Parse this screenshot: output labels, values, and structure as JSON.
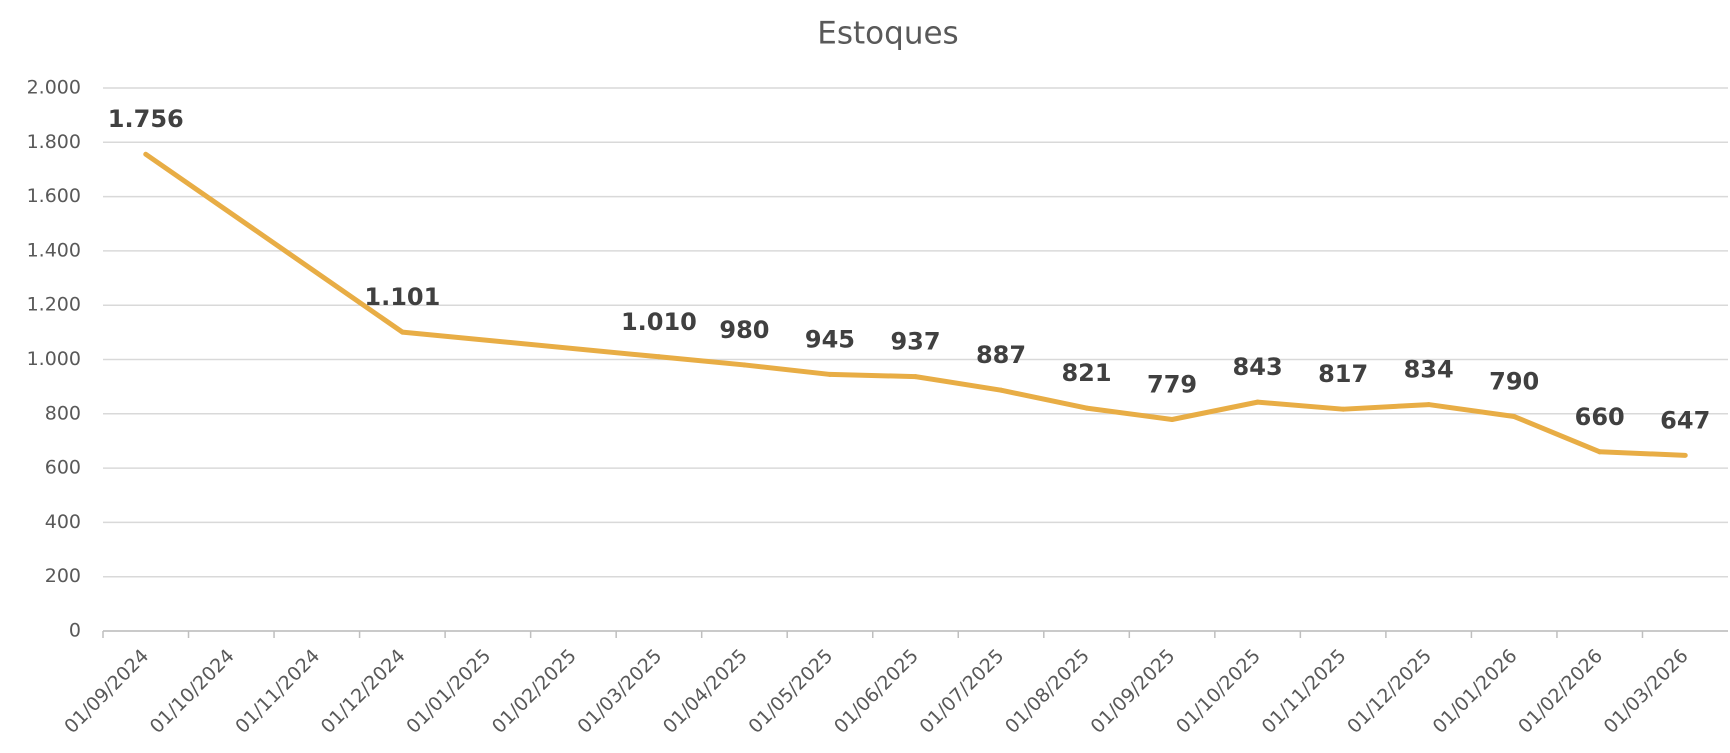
{
  "chart_data": {
    "type": "line",
    "title": "Estoques",
    "categories": [
      "01/09/2024",
      "01/10/2024",
      "01/11/2024",
      "01/12/2024",
      "01/01/2025",
      "01/02/2025",
      "01/03/2025",
      "01/04/2025",
      "01/05/2025",
      "01/06/2025",
      "01/07/2025",
      "01/08/2025",
      "01/09/2025",
      "01/10/2025",
      "01/11/2025",
      "01/12/2025",
      "01/01/2026",
      "01/02/2026",
      "01/03/2026"
    ],
    "values": [
      1756,
      null,
      null,
      1101,
      null,
      null,
      1010,
      980,
      945,
      937,
      887,
      821,
      779,
      843,
      817,
      834,
      790,
      660,
      647
    ],
    "value_labels": [
      "1.756",
      null,
      null,
      "1.101",
      null,
      null,
      "1.010",
      "980",
      "945",
      "937",
      "887",
      "821",
      "779",
      "843",
      "817",
      "834",
      "790",
      "660",
      "647"
    ],
    "connect_gaps": true,
    "color": "#e8ad45",
    "ylim": [
      0,
      2000
    ],
    "yticks": [
      0,
      200,
      400,
      600,
      800,
      {
        "value": 1000,
        "label": "1.000"
      },
      {
        "value": 1200,
        "label": "1.200"
      },
      {
        "value": 1400,
        "label": "1.400"
      },
      {
        "value": 1600,
        "label": "1.600"
      },
      {
        "value": 1800,
        "label": "1.800"
      },
      {
        "value": 2000,
        "label": "2.000"
      }
    ],
    "grid": true
  }
}
